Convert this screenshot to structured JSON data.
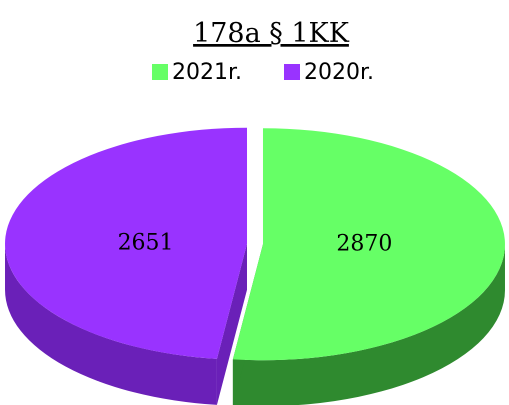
{
  "chart_data": {
    "type": "pie",
    "title": "178a § 1KK",
    "categories": [
      "2021r.",
      "2020r."
    ],
    "values": [
      2870,
      2651
    ],
    "colors": [
      "#66ff66",
      "#9933ff"
    ],
    "side_colors": [
      "#2f8a2f",
      "#6a20b8"
    ],
    "legend": "top"
  }
}
